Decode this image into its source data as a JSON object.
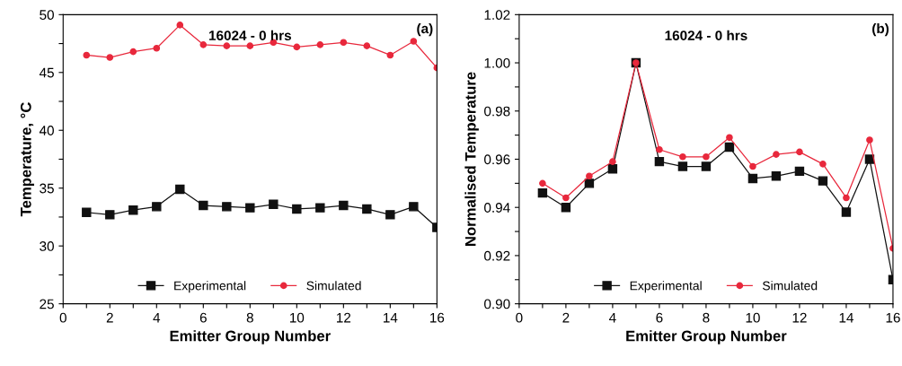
{
  "chart_data": [
    {
      "type": "line",
      "title": "16024 - 0 hrs",
      "xlabel": "Emitter Group Number",
      "ylabel": "Temperature, °C",
      "annotations": [
        "(a)"
      ],
      "x": [
        1,
        2,
        3,
        4,
        5,
        6,
        7,
        8,
        9,
        10,
        11,
        12,
        13,
        14,
        15,
        16
      ],
      "series": [
        {
          "name": "Experimental",
          "color": "#111111",
          "marker": "square",
          "values": [
            32.9,
            32.7,
            33.1,
            33.4,
            34.9,
            33.5,
            33.4,
            33.3,
            33.6,
            33.2,
            33.3,
            33.5,
            33.2,
            32.7,
            33.4,
            31.6
          ]
        },
        {
          "name": "Simulated",
          "color": "#e8283c",
          "marker": "circle",
          "values": [
            46.5,
            46.3,
            46.8,
            47.1,
            49.1,
            47.4,
            47.3,
            47.3,
            47.6,
            47.2,
            47.4,
            47.6,
            47.3,
            46.5,
            47.7,
            45.4
          ]
        }
      ],
      "xlim": [
        0,
        16
      ],
      "xticks": [
        0,
        {
          "value": 1,
          "label": null
        },
        2,
        {
          "value": 3,
          "label": null
        },
        4,
        {
          "value": 5,
          "label": null
        },
        6,
        {
          "value": 7,
          "label": null
        },
        8,
        {
          "value": 9,
          "label": null
        },
        10,
        {
          "value": 11,
          "label": null
        },
        12,
        {
          "value": 13,
          "label": null
        },
        14,
        {
          "value": 15,
          "label": null
        },
        16
      ],
      "ylim": [
        25,
        50
      ],
      "yticks": [
        25,
        {
          "value": 27.5,
          "label": null
        },
        30,
        {
          "value": 32.5,
          "label": null
        },
        35,
        {
          "value": 37.5,
          "label": null
        },
        40,
        {
          "value": 42.5,
          "label": null
        },
        45,
        {
          "value": 47.5,
          "label": null
        },
        50
      ],
      "legend": "bottom",
      "grid": false
    },
    {
      "type": "line",
      "title": "16024 - 0 hrs",
      "xlabel": "Emitter Group Number",
      "ylabel": "Normalised Temperature",
      "annotations": [
        "(b)"
      ],
      "x": [
        1,
        2,
        3,
        4,
        5,
        6,
        7,
        8,
        9,
        10,
        11,
        12,
        13,
        14,
        15,
        16
      ],
      "series": [
        {
          "name": "Experimental",
          "color": "#111111",
          "marker": "square",
          "values": [
            0.946,
            0.94,
            0.95,
            0.956,
            1.0,
            0.959,
            0.957,
            0.957,
            0.965,
            0.952,
            0.953,
            0.955,
            0.951,
            0.938,
            0.96,
            0.91
          ]
        },
        {
          "name": "Simulated",
          "color": "#e8283c",
          "marker": "circle",
          "values": [
            0.95,
            0.944,
            0.953,
            0.959,
            1.0,
            0.964,
            0.961,
            0.961,
            0.969,
            0.957,
            0.962,
            0.963,
            0.958,
            0.944,
            0.968,
            0.923
          ]
        }
      ],
      "xlim": [
        0,
        16
      ],
      "xticks": [
        0,
        {
          "value": 1,
          "label": null
        },
        2,
        {
          "value": 3,
          "label": null
        },
        4,
        {
          "value": 5,
          "label": null
        },
        6,
        {
          "value": 7,
          "label": null
        },
        8,
        {
          "value": 9,
          "label": null
        },
        10,
        {
          "value": 11,
          "label": null
        },
        12,
        {
          "value": 13,
          "label": null
        },
        14,
        {
          "value": 15,
          "label": null
        },
        16
      ],
      "ylim": [
        0.9,
        1.02
      ],
      "yticks": [
        {
          "value": 0.9,
          "label": "0.90"
        },
        {
          "value": 0.91,
          "label": null
        },
        {
          "value": 0.92,
          "label": "0.92"
        },
        {
          "value": 0.93,
          "label": null
        },
        {
          "value": 0.94,
          "label": "0.94"
        },
        {
          "value": 0.95,
          "label": null
        },
        {
          "value": 0.96,
          "label": "0.96"
        },
        {
          "value": 0.97,
          "label": null
        },
        {
          "value": 0.98,
          "label": "0.98"
        },
        {
          "value": 0.99,
          "label": null
        },
        {
          "value": 1.0,
          "label": "1.00"
        },
        {
          "value": 1.01,
          "label": null
        },
        {
          "value": 1.02,
          "label": "1.02"
        }
      ],
      "legend": "bottom",
      "grid": false
    }
  ]
}
